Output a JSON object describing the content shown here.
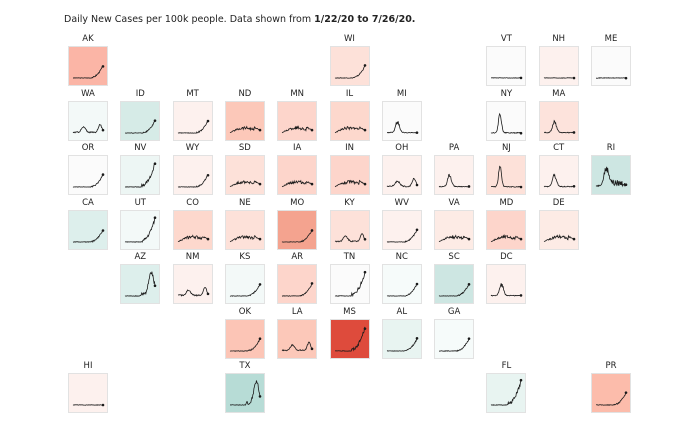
{
  "chart_data": {
    "type": "tile-map-sparklines",
    "title_prefix": "Daily New Cases per 100k people. Data shown from ",
    "title_dates": "1/22/20 to 7/26/20.",
    "colors": {
      "high": "#de4b3c",
      "warm": "#f4a38f",
      "light_warm": "#fde3dc",
      "neutral": "#fbfbfb",
      "cool": "#cde6e2",
      "deep_cool": "#b7dcd6"
    },
    "tiles": [
      {
        "state": "AK",
        "row": 0,
        "col": 0,
        "color": "#fbb5a6",
        "shape": "late"
      },
      {
        "state": "WI",
        "row": 0,
        "col": 5,
        "color": "#fde1d9",
        "shape": "late"
      },
      {
        "state": "VT",
        "row": 0,
        "col": 8,
        "color": "#fbfbfb",
        "shape": "flat"
      },
      {
        "state": "NH",
        "row": 0,
        "col": 9,
        "color": "#fdf1ee",
        "shape": "flat"
      },
      {
        "state": "ME",
        "row": 0,
        "col": 10,
        "color": "#fbfbfb",
        "shape": "flat"
      },
      {
        "state": "WA",
        "row": 1,
        "col": 0,
        "color": "#f3f9f8",
        "shape": "twohump"
      },
      {
        "state": "ID",
        "row": 1,
        "col": 1,
        "color": "#d6ebe7",
        "shape": "late"
      },
      {
        "state": "MT",
        "row": 1,
        "col": 2,
        "color": "#fdf1ee",
        "shape": "late"
      },
      {
        "state": "ND",
        "row": 1,
        "col": 3,
        "color": "#fcc8b9",
        "shape": "bumpy"
      },
      {
        "state": "MN",
        "row": 1,
        "col": 4,
        "color": "#fdd5cb",
        "shape": "bumpy"
      },
      {
        "state": "IL",
        "row": 1,
        "col": 5,
        "color": "#fdd8cd",
        "shape": "bumpy"
      },
      {
        "state": "MI",
        "row": 1,
        "col": 6,
        "color": "#fbfbfb",
        "shape": "earlypeak"
      },
      {
        "state": "NY",
        "row": 1,
        "col": 8,
        "color": "#fbfbfb",
        "shape": "bigearly"
      },
      {
        "state": "MA",
        "row": 1,
        "col": 9,
        "color": "#fde3dc",
        "shape": "earlypeak"
      },
      {
        "state": "OR",
        "row": 2,
        "col": 0,
        "color": "#fbfbfb",
        "shape": "late"
      },
      {
        "state": "NV",
        "row": 2,
        "col": 1,
        "color": "#edf6f4",
        "shape": "latespike"
      },
      {
        "state": "WY",
        "row": 2,
        "col": 2,
        "color": "#fdf1ee",
        "shape": "late"
      },
      {
        "state": "SD",
        "row": 2,
        "col": 3,
        "color": "#fde1d9",
        "shape": "bumpy"
      },
      {
        "state": "IA",
        "row": 2,
        "col": 4,
        "color": "#fdd5cb",
        "shape": "bumpy"
      },
      {
        "state": "IN",
        "row": 2,
        "col": 5,
        "color": "#fdd5cb",
        "shape": "bumpy"
      },
      {
        "state": "OH",
        "row": 2,
        "col": 6,
        "color": "#fdf1ee",
        "shape": "twohump"
      },
      {
        "state": "PA",
        "row": 2,
        "col": 7,
        "color": "#fdf1ee",
        "shape": "earlypeak"
      },
      {
        "state": "NJ",
        "row": 2,
        "col": 8,
        "color": "#fde1d9",
        "shape": "bigearly"
      },
      {
        "state": "CT",
        "row": 2,
        "col": 9,
        "color": "#fdf1ee",
        "shape": "earlypeak"
      },
      {
        "state": "RI",
        "row": 2,
        "col": 10,
        "color": "#cde6e2",
        "shape": "rijagged"
      },
      {
        "state": "CA",
        "row": 3,
        "col": 0,
        "color": "#ddefec",
        "shape": "late"
      },
      {
        "state": "UT",
        "row": 3,
        "col": 1,
        "color": "#f3f9f8",
        "shape": "latespike"
      },
      {
        "state": "CO",
        "row": 3,
        "col": 2,
        "color": "#fdd8cd",
        "shape": "bumpy"
      },
      {
        "state": "NE",
        "row": 3,
        "col": 3,
        "color": "#fde1d9",
        "shape": "bumpy"
      },
      {
        "state": "MO",
        "row": 3,
        "col": 4,
        "color": "#f4a38f",
        "shape": "late"
      },
      {
        "state": "KY",
        "row": 3,
        "col": 5,
        "color": "#fde1d9",
        "shape": "twohump"
      },
      {
        "state": "WV",
        "row": 3,
        "col": 6,
        "color": "#fdf1ee",
        "shape": "late"
      },
      {
        "state": "VA",
        "row": 3,
        "col": 7,
        "color": "#fdebe5",
        "shape": "bumpy"
      },
      {
        "state": "MD",
        "row": 3,
        "col": 8,
        "color": "#fdd5cb",
        "shape": "bumpy"
      },
      {
        "state": "DE",
        "row": 3,
        "col": 9,
        "color": "#fdebe5",
        "shape": "bumpy"
      },
      {
        "state": "AZ",
        "row": 4,
        "col": 1,
        "color": "#ddefec",
        "shape": "azpeak"
      },
      {
        "state": "NM",
        "row": 4,
        "col": 2,
        "color": "#fdf1ee",
        "shape": "twohump"
      },
      {
        "state": "KS",
        "row": 4,
        "col": 3,
        "color": "#f3f9f8",
        "shape": "late"
      },
      {
        "state": "AR",
        "row": 4,
        "col": 4,
        "color": "#fdd5cb",
        "shape": "late"
      },
      {
        "state": "TN",
        "row": 4,
        "col": 5,
        "color": "#fbfbfb",
        "shape": "latespike"
      },
      {
        "state": "NC",
        "row": 4,
        "col": 6,
        "color": "#f6fbfa",
        "shape": "late"
      },
      {
        "state": "SC",
        "row": 4,
        "col": 7,
        "color": "#cde6e2",
        "shape": "late"
      },
      {
        "state": "DC",
        "row": 4,
        "col": 8,
        "color": "#fdf1ee",
        "shape": "earlypeak"
      },
      {
        "state": "OK",
        "row": 5,
        "col": 3,
        "color": "#fcc5b6",
        "shape": "late"
      },
      {
        "state": "LA",
        "row": 5,
        "col": 4,
        "color": "#fcc8b9",
        "shape": "twohump"
      },
      {
        "state": "MS",
        "row": 5,
        "col": 5,
        "color": "#de4b3c",
        "shape": "latespike"
      },
      {
        "state": "AL",
        "row": 5,
        "col": 6,
        "color": "#e8f4f1",
        "shape": "late"
      },
      {
        "state": "GA",
        "row": 5,
        "col": 7,
        "color": "#f6fbfa",
        "shape": "late"
      },
      {
        "state": "HI",
        "row": 6,
        "col": 0,
        "color": "#fdf1ee",
        "shape": "flat"
      },
      {
        "state": "TX",
        "row": 6,
        "col": 3,
        "color": "#b7dcd6",
        "shape": "azpeak"
      },
      {
        "state": "FL",
        "row": 6,
        "col": 8,
        "color": "#e8f4f1",
        "shape": "latespike"
      },
      {
        "state": "PR",
        "row": 6,
        "col": 10,
        "color": "#fcbcab",
        "shape": "late"
      }
    ]
  }
}
